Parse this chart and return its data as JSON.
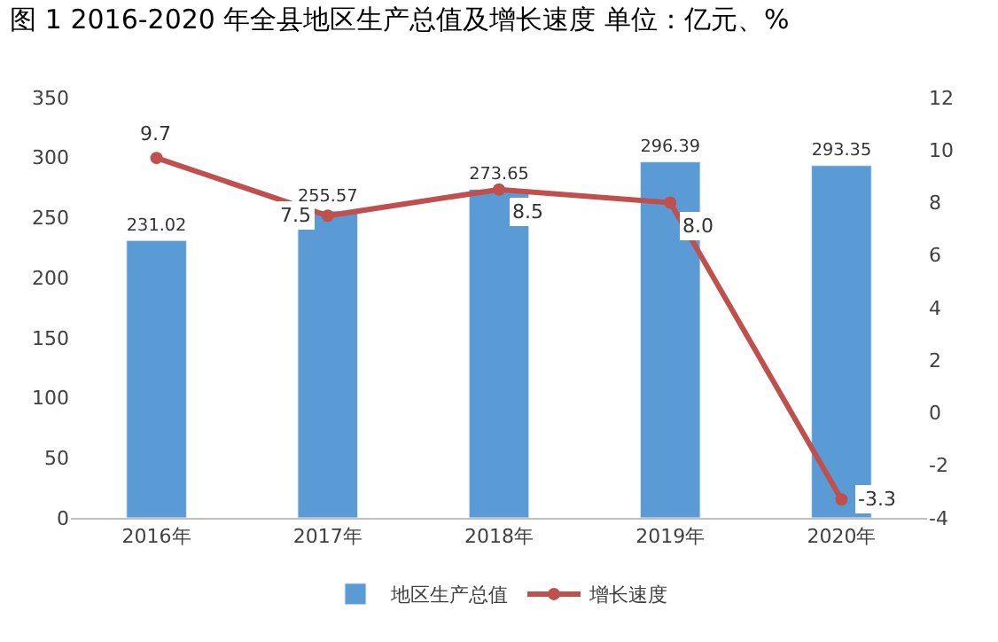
{
  "chart_data": {
    "type": "bar",
    "title": "图 1 2016-2020 年全县地区生产总值及增长速度 单位：亿元、%",
    "categories": [
      "2016年",
      "2017年",
      "2018年",
      "2019年",
      "2020年"
    ],
    "series": [
      {
        "name": "地区生产总值",
        "color": "#5b9bd5",
        "values": [
          231.02,
          255.57,
          273.65,
          296.39,
          293.35
        ],
        "value_labels": [
          "231.02",
          "255.57",
          "273.65",
          "296.39",
          "293.35"
        ]
      },
      {
        "name": "增长速度",
        "type": "line",
        "axis": "y2",
        "color": "#c0504d",
        "marker": "circle",
        "values": [
          9.7,
          7.5,
          8.5,
          8.0,
          -3.3
        ],
        "value_labels": [
          "9.7",
          "7.5",
          "8.5",
          "8.0",
          "-3.3"
        ]
      }
    ],
    "ylim": [
      0,
      350
    ],
    "yticks": [
      0,
      50,
      100,
      150,
      200,
      250,
      300,
      350
    ],
    "y2lim": [
      -4,
      12
    ],
    "y2ticks": [
      -4,
      -2,
      0,
      2,
      4,
      6,
      8,
      10,
      12
    ],
    "legend": "bottom"
  }
}
